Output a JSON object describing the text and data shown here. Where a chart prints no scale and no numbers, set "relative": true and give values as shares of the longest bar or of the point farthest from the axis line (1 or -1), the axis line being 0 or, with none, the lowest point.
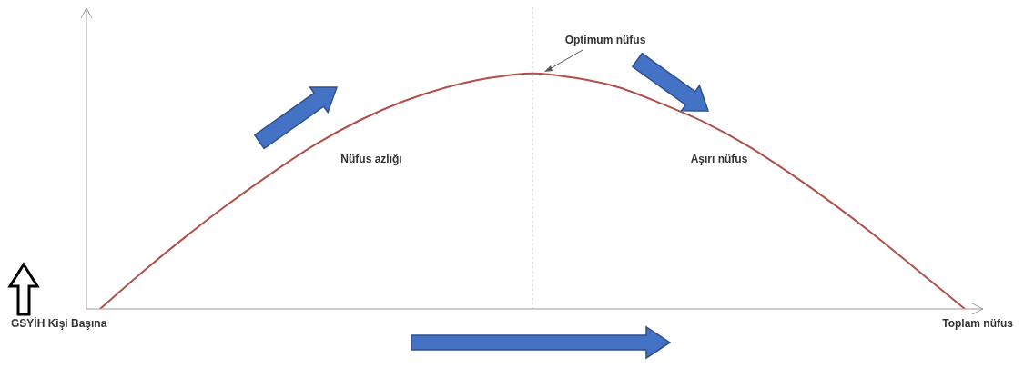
{
  "chart_data": {
    "type": "line",
    "relative": true,
    "xlabel": "Toplam nüfus",
    "ylabel": "GSYİH Kişi Başına",
    "categories": [
      null,
      null,
      null,
      null,
      null,
      null,
      null,
      null,
      null,
      null,
      null,
      null,
      null,
      null,
      null,
      null,
      null,
      null,
      null,
      null,
      null
    ],
    "series": [
      {
        "color": "#b0504a",
        "values": [
          0,
          0.16,
          0.31,
          0.45,
          0.58,
          0.7,
          0.8,
          0.88,
          0.94,
          0.98,
          1,
          0.98,
          0.94,
          0.87,
          0.79,
          0.69,
          0.57,
          0.44,
          0.3,
          0.15,
          0
        ]
      }
    ],
    "annotations": [
      "Optimum nüfus",
      "Nüfus azlığı",
      "Aşırı nüfus"
    ],
    "marker": "none",
    "line_style": "solid"
  }
}
